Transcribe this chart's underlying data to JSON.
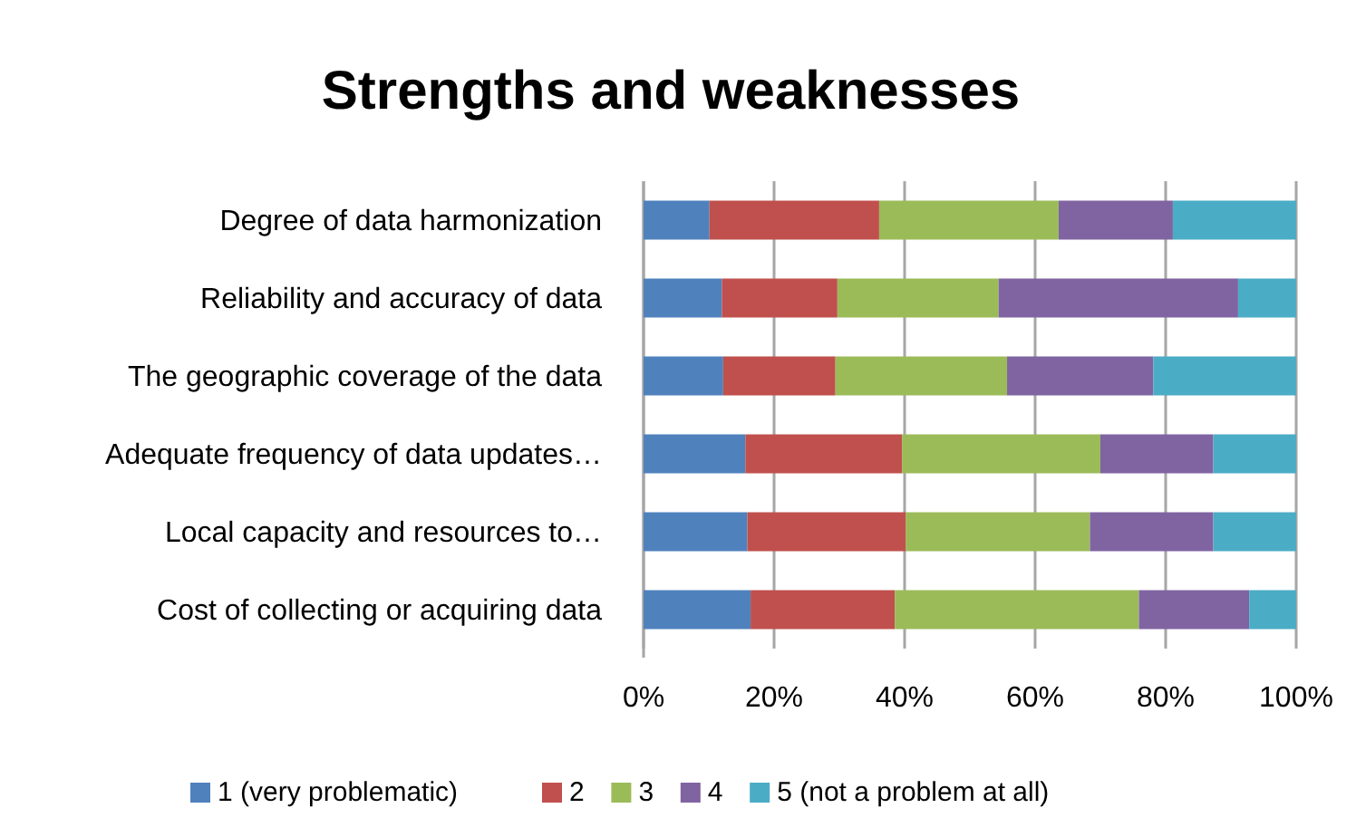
{
  "chart_data": {
    "type": "bar",
    "orientation": "horizontal",
    "stacked": true,
    "title": "Strengths and weaknesses",
    "categories": [
      "Degree of data harmonization",
      "Reliability and accuracy of data",
      "The geographic coverage of the data",
      "Adequate frequency of data updates…",
      "Local capacity and resources to…",
      "Cost of collecting or acquiring data"
    ],
    "series": [
      {
        "name": "1 (very problematic)",
        "color": "#4f81bd",
        "values": [
          10.1,
          12.0,
          12.2,
          15.6,
          15.9,
          16.4
        ]
      },
      {
        "name": "2",
        "color": "#c0504d",
        "values": [
          26.0,
          17.7,
          17.2,
          24.0,
          24.3,
          22.1
        ]
      },
      {
        "name": "3",
        "color": "#9bbb59",
        "values": [
          27.5,
          24.7,
          26.3,
          30.4,
          28.2,
          37.4
        ]
      },
      {
        "name": "4",
        "color": "#8064a2",
        "values": [
          17.5,
          36.7,
          22.4,
          17.3,
          18.9,
          16.9
        ]
      },
      {
        "name": "5 (not a problem at all)",
        "color": "#4bacc6",
        "values": [
          18.9,
          8.9,
          21.9,
          12.7,
          12.7,
          7.2
        ]
      }
    ],
    "xlim": [
      0,
      100
    ],
    "xticks": [
      {
        "value": 0,
        "label": "0%"
      },
      {
        "value": 20,
        "label": "20%"
      },
      {
        "value": 40,
        "label": "40%"
      },
      {
        "value": 60,
        "label": "60%"
      },
      {
        "value": 80,
        "label": "80%"
      },
      {
        "value": 100,
        "label": "100%"
      }
    ],
    "grid": "x",
    "legend": "bottom"
  }
}
